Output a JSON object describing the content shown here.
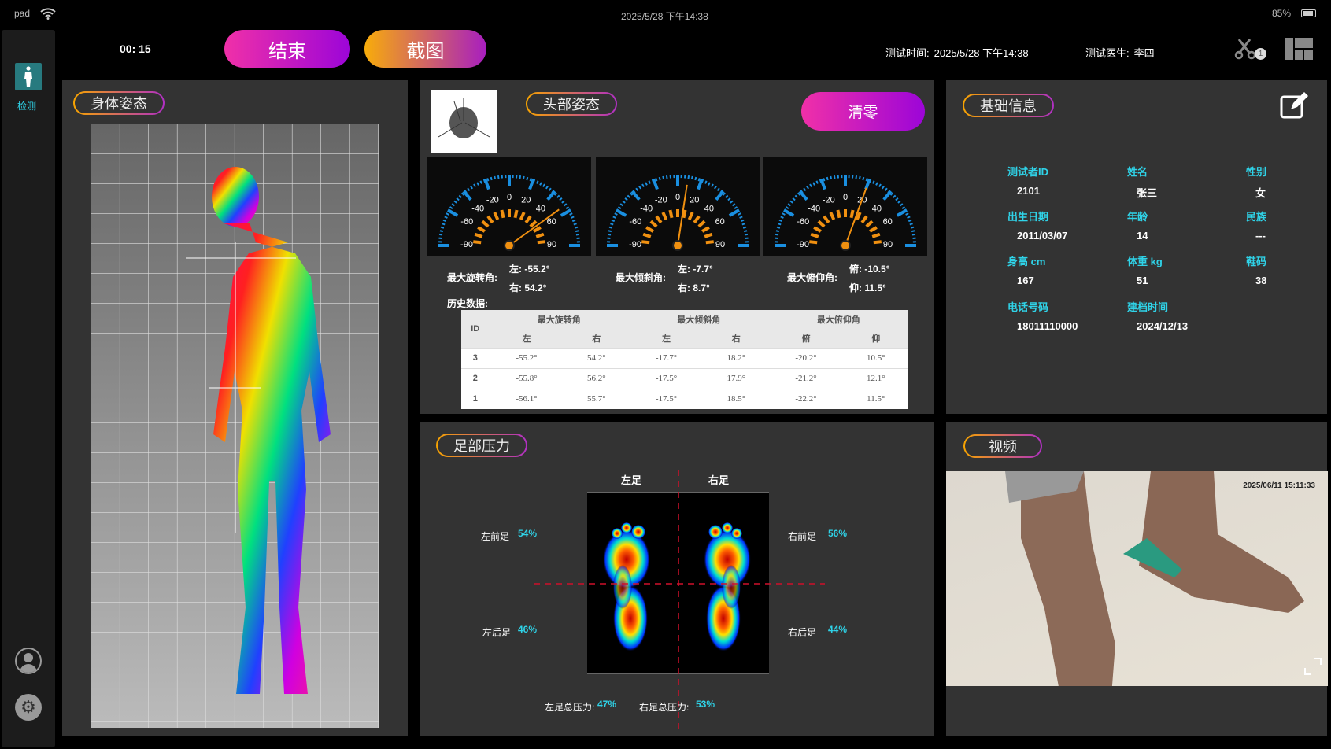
{
  "status": {
    "device": "pad",
    "datetime": "2025/5/28  下午14:38",
    "battery": "85%"
  },
  "sidebar": {
    "items": [
      {
        "label": "检测",
        "icon": "body-icon"
      }
    ],
    "bottom_icons": [
      "user-icon",
      "gear-icon"
    ]
  },
  "header": {
    "timer": "00: 15",
    "end_button": "结束",
    "screenshot_button": "截图",
    "test_time_label": "测试时间:",
    "test_time": "2025/5/28  下午14:38",
    "doctor_label": "测试医生:",
    "doctor": "李四",
    "scissors_badge": "1"
  },
  "body_panel": {
    "title": "身体姿态"
  },
  "head_panel": {
    "title": "头部姿态",
    "reset_button": "清零",
    "gauges": [
      {
        "ticks": [
          "-90",
          "-60",
          "-40",
          "-20",
          "0",
          "20",
          "40",
          "60",
          "90"
        ],
        "needle": 54.2
      },
      {
        "ticks": [
          "-90",
          "-60",
          "-40",
          "-20",
          "0",
          "20",
          "40",
          "60",
          "90"
        ],
        "needle": 8.7
      },
      {
        "ticks": [
          "-90",
          "-60",
          "-40",
          "-20",
          "0",
          "20",
          "40",
          "60",
          "90"
        ],
        "needle": 20
      }
    ],
    "summary": [
      {
        "label": "最大旋转角:",
        "a": "左:  -55.2°",
        "b": "右:  54.2°"
      },
      {
        "label": "最大倾斜角:",
        "a": "左:  -7.7°",
        "b": "右:  8.7°"
      },
      {
        "label": "最大俯仰角:",
        "a": "俯:  -10.5°",
        "b": "仰:  11.5°"
      }
    ],
    "history_label": "历史数据:",
    "table": {
      "id_header": "ID",
      "groups": [
        "最大旋转角",
        "最大倾斜角",
        "最大俯仰角"
      ],
      "subs": [
        "左",
        "右",
        "左",
        "右",
        "俯",
        "仰"
      ],
      "rows": [
        [
          "3",
          "-55.2°",
          "54.2°",
          "-17.7°",
          "18.2°",
          "-20.2°",
          "10.5°"
        ],
        [
          "2",
          "-55.8°",
          "56.2°",
          "-17.5°",
          "17.9°",
          "-21.2°",
          "12.1°"
        ],
        [
          "1",
          "-56.1°",
          "55.7°",
          "-17.5°",
          "18.5°",
          "-22.2°",
          "11.5°"
        ]
      ]
    }
  },
  "info_panel": {
    "title": "基础信息",
    "fields": [
      {
        "label": "测试者ID",
        "value": "2101"
      },
      {
        "label": "姓名",
        "value": "张三"
      },
      {
        "label": "性别",
        "value": "女"
      },
      {
        "label": "出生日期",
        "value": "2011/03/07"
      },
      {
        "label": "年龄",
        "value": "14"
      },
      {
        "label": "民族",
        "value": "---"
      },
      {
        "label": "身高 cm",
        "value": "167"
      },
      {
        "label": "体重 kg",
        "value": "51"
      },
      {
        "label": "鞋码",
        "value": "38"
      },
      {
        "label": "电话号码",
        "value": "18011110000"
      },
      {
        "label": "建档时间",
        "value": "2024/12/13"
      }
    ]
  },
  "foot_panel": {
    "title": "足部压力",
    "left": "左足",
    "right": "右足",
    "lf_label": "左前足",
    "lf": "54%",
    "lr_label": "左后足",
    "lr": "46%",
    "rf_label": "右前足",
    "rf": "56%",
    "rr_label": "右后足",
    "rr": "44%",
    "lt_label": "左足总压力:",
    "lt": "47%",
    "rt_label": "右足总压力:",
    "rt": "53%"
  },
  "video_panel": {
    "title": "视频",
    "timestamp": "2025/06/11 15:11:33"
  }
}
